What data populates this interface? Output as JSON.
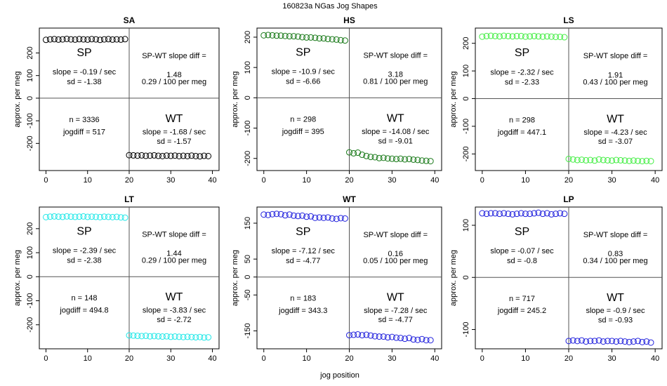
{
  "figure": {
    "title": "160823a    NGas Jog Shapes",
    "xlabel": "jog position"
  },
  "chart_data": [
    {
      "type": "scatter",
      "title": "SA",
      "ylabel": "approx. per meg",
      "color": "#000000",
      "xlim": [
        -1.6,
        41.6
      ],
      "ylim": [
        -320,
        310
      ],
      "xticks": [
        0,
        10,
        20,
        30,
        40
      ],
      "yticks": [
        -200,
        -100,
        0,
        100,
        200
      ],
      "sp": [
        258,
        260,
        261,
        259,
        260,
        262,
        260,
        259,
        261,
        260,
        259,
        261,
        260,
        258,
        260,
        261,
        259,
        260,
        259,
        261
      ],
      "wt": [
        -252,
        -253,
        -254,
        -253,
        -255,
        -254,
        -253,
        -255,
        -256,
        -254,
        -255,
        -254,
        -256,
        -255,
        -256,
        -254,
        -256,
        -257,
        -255,
        -256
      ],
      "labels": {
        "sp": "SP",
        "wt": "WT",
        "sp_slope": "slope = -0.19 / sec",
        "sp_sd": "sd = -1.38",
        "diff_title": "SP-WT slope diff =",
        "diff_val": "1.48",
        "diff_per": "0.29 / 100 per meg",
        "n": "n = 3336",
        "jogdiff": "jogdiff = 517",
        "wt_slope": "slope = -1.68 / sec",
        "wt_sd": "sd = -1.57"
      }
    },
    {
      "type": "scatter",
      "title": "HS",
      "ylabel": "approx. per meg",
      "color": "#1a7a1a",
      "xlim": [
        -1.6,
        41.6
      ],
      "ylim": [
        -240,
        230
      ],
      "xticks": [
        0,
        10,
        20,
        30,
        40
      ],
      "yticks": [
        -200,
        -100,
        0,
        100,
        200
      ],
      "sp": [
        206,
        207,
        206,
        205,
        205,
        204,
        203,
        203,
        202,
        200,
        199,
        199,
        198,
        196,
        196,
        194,
        193,
        192,
        190,
        189
      ],
      "wt": [
        -180,
        -183,
        -181,
        -188,
        -192,
        -195,
        -196,
        -199,
        -198,
        -200,
        -201,
        -202,
        -201,
        -203,
        -202,
        -204,
        -205,
        -207,
        -208,
        -209
      ],
      "labels": {
        "sp": "SP",
        "wt": "WT",
        "sp_slope": "slope = -10.9 / sec",
        "sp_sd": "sd = -6.66",
        "diff_title": "SP-WT slope diff =",
        "diff_val": "3.18",
        "diff_per": "0.81 / 100 per meg",
        "n": "n = 298",
        "jogdiff": "jogdiff = 395",
        "wt_slope": "slope = -14.08 / sec",
        "wt_sd": "sd = -9.01"
      }
    },
    {
      "type": "scatter",
      "title": "LS",
      "ylabel": "approx. per meg",
      "color": "#44ee44",
      "xlim": [
        -1.6,
        41.6
      ],
      "ylim": [
        -260,
        255
      ],
      "xticks": [
        0,
        10,
        20,
        30,
        40
      ],
      "yticks": [
        -200,
        -100,
        0,
        100,
        200
      ],
      "sp": [
        224,
        226,
        227,
        226,
        225,
        227,
        226,
        225,
        226,
        226,
        224,
        225,
        226,
        225,
        224,
        225,
        224,
        223,
        223,
        222
      ],
      "wt": [
        -218,
        -220,
        -222,
        -221,
        -223,
        -222,
        -224,
        -220,
        -222,
        -223,
        -224,
        -222,
        -223,
        -224,
        -225,
        -224,
        -225,
        -226,
        -225,
        -226
      ],
      "labels": {
        "sp": "SP",
        "wt": "WT",
        "sp_slope": "slope = -2.32 / sec",
        "sp_sd": "sd = -2.33",
        "diff_title": "SP-WT slope diff =",
        "diff_val": "1.91",
        "diff_per": "0.43 / 100 per meg",
        "n": "n = 298",
        "jogdiff": "jogdiff = 447.1",
        "wt_slope": "slope = -4.23 / sec",
        "wt_sd": "sd = -3.07"
      }
    },
    {
      "type": "scatter",
      "title": "LT",
      "ylabel": "approx. per meg",
      "color": "#22e8e8",
      "xlim": [
        -1.6,
        41.6
      ],
      "ylim": [
        -300,
        290
      ],
      "xticks": [
        0,
        10,
        20,
        30,
        40
      ],
      "yticks": [
        -200,
        -100,
        0,
        100,
        200
      ],
      "sp": [
        248,
        250,
        251,
        250,
        249,
        251,
        250,
        249,
        250,
        251,
        249,
        250,
        249,
        248,
        250,
        249,
        248,
        249,
        247,
        246
      ],
      "wt": [
        -244,
        -245,
        -246,
        -247,
        -246,
        -248,
        -247,
        -248,
        -249,
        -248,
        -250,
        -249,
        -250,
        -251,
        -250,
        -251,
        -252,
        -251,
        -253,
        -252
      ],
      "labels": {
        "sp": "SP",
        "wt": "WT",
        "sp_slope": "slope = -2.39 / sec",
        "sp_sd": "sd = -2.38",
        "diff_title": "SP-WT slope diff =",
        "diff_val": "1.44",
        "diff_per": "0.29 / 100 per meg",
        "n": "n = 148",
        "jogdiff": "jogdiff = 494.8",
        "wt_slope": "slope = -3.83 / sec",
        "wt_sd": "sd = -2.72"
      }
    },
    {
      "type": "scatter",
      "title": "WT",
      "ylabel": "approx. per meg",
      "color": "#2222dd",
      "xlim": [
        -1.6,
        41.6
      ],
      "ylim": [
        -200,
        195
      ],
      "xticks": [
        0,
        10,
        20,
        30,
        40
      ],
      "yticks": [
        -150,
        -50,
        0,
        50,
        150
      ],
      "sp": [
        174,
        173,
        175,
        176,
        175,
        172,
        174,
        171,
        170,
        171,
        168,
        169,
        165,
        166,
        165,
        166,
        163,
        162,
        164,
        163
      ],
      "wt": [
        -162,
        -161,
        -160,
        -162,
        -161,
        -163,
        -165,
        -166,
        -166,
        -168,
        -167,
        -169,
        -170,
        -172,
        -170,
        -174,
        -175,
        -173,
        -176,
        -176
      ],
      "labels": {
        "sp": "SP",
        "wt": "WT",
        "sp_slope": "slope = -7.12 / sec",
        "sp_sd": "sd = -4.77",
        "diff_title": "SP-WT slope diff =",
        "diff_val": "0.16",
        "diff_per": "0.05 / 100 per meg",
        "n": "n = 183",
        "jogdiff": "jogdiff = 343.3",
        "wt_slope": "slope = -7.28 / sec",
        "wt_sd": "sd = -4.77"
      }
    },
    {
      "type": "scatter",
      "title": "LP",
      "ylabel": "approx. per meg",
      "color": "#2222dd",
      "xlim": [
        -1.6,
        41.6
      ],
      "ylim": [
        -137,
        135
      ],
      "xticks": [
        0,
        10,
        20,
        30,
        40
      ],
      "yticks": [
        -100,
        0,
        100
      ],
      "sp": [
        123,
        122,
        123,
        123,
        122,
        123,
        122,
        121,
        122,
        123,
        122,
        122,
        123,
        124,
        122,
        123,
        121,
        122,
        123,
        122
      ],
      "wt": [
        -122,
        -121,
        -122,
        -121,
        -123,
        -122,
        -122,
        -121,
        -123,
        -122,
        -122,
        -123,
        -122,
        -123,
        -124,
        -123,
        -122,
        -124,
        -123,
        -125
      ],
      "labels": {
        "sp": "SP",
        "wt": "WT",
        "sp_slope": "slope = -0.07 / sec",
        "sp_sd": "sd = -0.8",
        "diff_title": "SP-WT slope diff =",
        "diff_val": "0.83",
        "diff_per": "0.34 / 100 per meg",
        "n": "n = 717",
        "jogdiff": "jogdiff = 245.2",
        "wt_slope": "slope = -0.9 / sec",
        "wt_sd": "sd = -0.93"
      }
    }
  ]
}
